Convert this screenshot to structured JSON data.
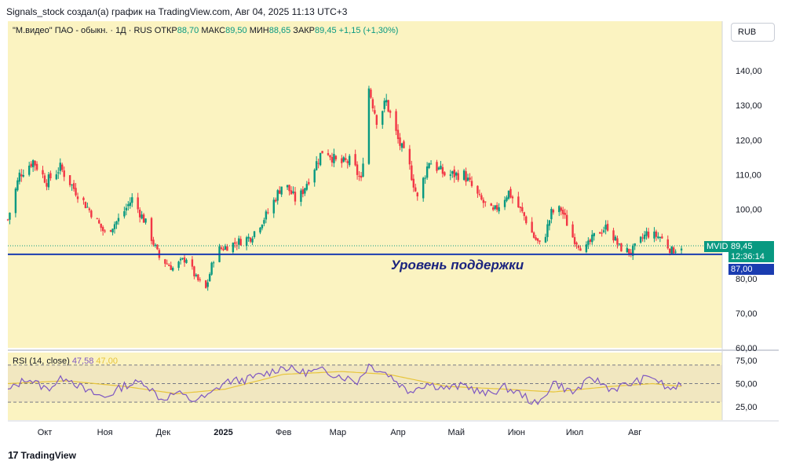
{
  "header": {
    "text": "Signals_stock создал(а) график на TradingView.com, Авг 04, 2025 11:13 UTC+3"
  },
  "legend": {
    "symbol": "\"М.видео\" ПАО - обыкн. · 1Д · RUS",
    "open_label": "ОТКР",
    "open_value": "88,70",
    "high_label": "МАКС",
    "high_value": "89,50",
    "low_label": "МИН",
    "low_value": "88,65",
    "close_label": "ЗАКР",
    "close_value": "89,45",
    "change": "+1,15 (+1,30%)"
  },
  "currency_button": "RUB",
  "price_tag": {
    "ticker": "MVID",
    "price": "89,45",
    "countdown": "12:36:14"
  },
  "support_tag": "87,00",
  "support_label": "Уровень поддержки",
  "rsi_legend": {
    "name": "RSI (14, close)",
    "value": "47,58",
    "ma_value": "47,00"
  },
  "footer": {
    "logo_icon": "tradingview-logo-icon",
    "text": "TradingView"
  },
  "colors": {
    "up": "#089981",
    "down": "#f23645",
    "background": "#fbf3c1",
    "support": "#1a3cb0",
    "rsi": "#7e57c2",
    "rsi_ma": "#e7c53b"
  },
  "chart_data": [
    {
      "type": "candlestick",
      "title": "",
      "ylim": [
        60,
        150
      ],
      "y_ticks": [
        "140,00",
        "130,00",
        "120,00",
        "110,00",
        "100,00",
        "90,00",
        "80,00",
        "70,00",
        "60,00"
      ],
      "y_tick_values": [
        140,
        130,
        120,
        110,
        100,
        90,
        80,
        70,
        60
      ],
      "x_ticks": [
        "Окт",
        "Ноя",
        "Дек",
        "2025",
        "Фев",
        "Мар",
        "Апр",
        "Май",
        "Июн",
        "Июл",
        "Авг"
      ],
      "x_tick_dates": [
        "2024-10-01",
        "2024-11-01",
        "2024-12-01",
        "2025-01-01",
        "2025-02-01",
        "2025-03-01",
        "2025-04-01",
        "2025-05-01",
        "2025-06-01",
        "2025-07-01",
        "2025-08-01"
      ],
      "x_range": [
        "2024-09-12",
        "2025-09-15"
      ],
      "support_level": 87.0,
      "last_price": 89.45,
      "series_approx": [
        {
          "date": "2024-09-12",
          "close": 97
        },
        {
          "date": "2024-09-18",
          "close": 110
        },
        {
          "date": "2024-09-25",
          "close": 114
        },
        {
          "date": "2024-10-02",
          "close": 108
        },
        {
          "date": "2024-10-09",
          "close": 112
        },
        {
          "date": "2024-10-16",
          "close": 106
        },
        {
          "date": "2024-10-25",
          "close": 99
        },
        {
          "date": "2024-11-01",
          "close": 93
        },
        {
          "date": "2024-11-08",
          "close": 97
        },
        {
          "date": "2024-11-15",
          "close": 103
        },
        {
          "date": "2024-11-22",
          "close": 96
        },
        {
          "date": "2024-11-29",
          "close": 86
        },
        {
          "date": "2024-12-06",
          "close": 83
        },
        {
          "date": "2024-12-13",
          "close": 86
        },
        {
          "date": "2024-12-18",
          "close": 80
        },
        {
          "date": "2024-12-23",
          "close": 77
        },
        {
          "date": "2024-12-28",
          "close": 88
        },
        {
          "date": "2025-01-06",
          "close": 90
        },
        {
          "date": "2025-01-15",
          "close": 92
        },
        {
          "date": "2025-01-24",
          "close": 99
        },
        {
          "date": "2025-02-01",
          "close": 108
        },
        {
          "date": "2025-02-08",
          "close": 102
        },
        {
          "date": "2025-02-15",
          "close": 110
        },
        {
          "date": "2025-02-22",
          "close": 118
        },
        {
          "date": "2025-03-01",
          "close": 113
        },
        {
          "date": "2025-03-08",
          "close": 114
        },
        {
          "date": "2025-03-13",
          "close": 108
        },
        {
          "date": "2025-03-17",
          "close": 135
        },
        {
          "date": "2025-03-21",
          "close": 126
        },
        {
          "date": "2025-03-26",
          "close": 131
        },
        {
          "date": "2025-04-01",
          "close": 120
        },
        {
          "date": "2025-04-07",
          "close": 112
        },
        {
          "date": "2025-04-11",
          "close": 103
        },
        {
          "date": "2025-04-17",
          "close": 114
        },
        {
          "date": "2025-04-25",
          "close": 110
        },
        {
          "date": "2025-05-05",
          "close": 110
        },
        {
          "date": "2025-05-13",
          "close": 103
        },
        {
          "date": "2025-05-20",
          "close": 99
        },
        {
          "date": "2025-05-28",
          "close": 105
        },
        {
          "date": "2025-06-05",
          "close": 98
        },
        {
          "date": "2025-06-10",
          "close": 92
        },
        {
          "date": "2025-06-14",
          "close": 89
        },
        {
          "date": "2025-06-19",
          "close": 99
        },
        {
          "date": "2025-06-24",
          "close": 100
        },
        {
          "date": "2025-06-30",
          "close": 92
        },
        {
          "date": "2025-07-06",
          "close": 88
        },
        {
          "date": "2025-07-12",
          "close": 93
        },
        {
          "date": "2025-07-18",
          "close": 95
        },
        {
          "date": "2025-07-24",
          "close": 89
        },
        {
          "date": "2025-07-30",
          "close": 87.5
        },
        {
          "date": "2025-08-07",
          "close": 93
        },
        {
          "date": "2025-08-14",
          "close": 92
        },
        {
          "date": "2025-08-20",
          "close": 88
        },
        {
          "date": "2025-08-25",
          "close": 89.45
        }
      ]
    },
    {
      "type": "line",
      "title": "RSI (14, close)",
      "ylim": [
        10,
        80
      ],
      "y_ticks": [
        "75,00",
        "50,00",
        "25,00"
      ],
      "y_tick_values": [
        75,
        50,
        25
      ],
      "bands": [
        30,
        50,
        70
      ],
      "series": [
        {
          "name": "RSI",
          "points": [
            {
              "date": "2024-09-12",
              "value": 42
            },
            {
              "date": "2024-09-22",
              "value": 56
            },
            {
              "date": "2024-10-02",
              "value": 44
            },
            {
              "date": "2024-10-12",
              "value": 58
            },
            {
              "date": "2024-10-22",
              "value": 42
            },
            {
              "date": "2024-11-01",
              "value": 35
            },
            {
              "date": "2024-11-11",
              "value": 48
            },
            {
              "date": "2024-11-21",
              "value": 52
            },
            {
              "date": "2024-11-30",
              "value": 33
            },
            {
              "date": "2024-12-08",
              "value": 40
            },
            {
              "date": "2024-12-16",
              "value": 32
            },
            {
              "date": "2024-12-24",
              "value": 36
            },
            {
              "date": "2025-01-02",
              "value": 52
            },
            {
              "date": "2025-01-12",
              "value": 54
            },
            {
              "date": "2025-01-22",
              "value": 60
            },
            {
              "date": "2025-02-01",
              "value": 68
            },
            {
              "date": "2025-02-11",
              "value": 62
            },
            {
              "date": "2025-02-21",
              "value": 64
            },
            {
              "date": "2025-03-03",
              "value": 58
            },
            {
              "date": "2025-03-11",
              "value": 52
            },
            {
              "date": "2025-03-17",
              "value": 70
            },
            {
              "date": "2025-03-27",
              "value": 60
            },
            {
              "date": "2025-04-06",
              "value": 42
            },
            {
              "date": "2025-04-16",
              "value": 50
            },
            {
              "date": "2025-04-26",
              "value": 45
            },
            {
              "date": "2025-05-06",
              "value": 48
            },
            {
              "date": "2025-05-16",
              "value": 38
            },
            {
              "date": "2025-05-26",
              "value": 46
            },
            {
              "date": "2025-06-04",
              "value": 38
            },
            {
              "date": "2025-06-12",
              "value": 26
            },
            {
              "date": "2025-06-20",
              "value": 52
            },
            {
              "date": "2025-06-30",
              "value": 40
            },
            {
              "date": "2025-07-10",
              "value": 56
            },
            {
              "date": "2025-07-20",
              "value": 44
            },
            {
              "date": "2025-07-30",
              "value": 50
            },
            {
              "date": "2025-08-10",
              "value": 58
            },
            {
              "date": "2025-08-18",
              "value": 44
            },
            {
              "date": "2025-08-25",
              "value": 47.58
            }
          ]
        },
        {
          "name": "RSI MA",
          "points": [
            {
              "date": "2024-09-12",
              "value": 50
            },
            {
              "date": "2024-10-12",
              "value": 53
            },
            {
              "date": "2024-11-11",
              "value": 47
            },
            {
              "date": "2024-12-08",
              "value": 39
            },
            {
              "date": "2025-01-02",
              "value": 44
            },
            {
              "date": "2025-02-01",
              "value": 60
            },
            {
              "date": "2025-03-03",
              "value": 63
            },
            {
              "date": "2025-03-27",
              "value": 60
            },
            {
              "date": "2025-04-26",
              "value": 47
            },
            {
              "date": "2025-05-26",
              "value": 44
            },
            {
              "date": "2025-06-20",
              "value": 41
            },
            {
              "date": "2025-07-20",
              "value": 47
            },
            {
              "date": "2025-08-10",
              "value": 50
            },
            {
              "date": "2025-08-25",
              "value": 47
            }
          ]
        }
      ]
    }
  ]
}
